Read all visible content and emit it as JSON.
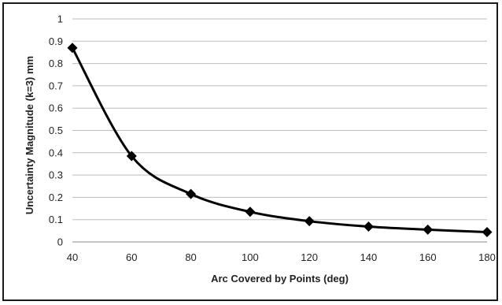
{
  "chart_data": {
    "type": "line",
    "title": "",
    "xlabel": "Arc Covered by Points (deg)",
    "ylabel": "Uncertainty Magnitude (k=3) mm",
    "x": [
      40,
      60,
      80,
      100,
      120,
      140,
      160,
      180
    ],
    "xticks": [
      "40",
      "60",
      "80",
      "100",
      "120",
      "140",
      "160",
      "180"
    ],
    "yticks": [
      "0",
      "0.1",
      "0.2",
      "0.3",
      "0.4",
      "0.5",
      "0.6",
      "0.7",
      "0.8",
      "0.9",
      "1"
    ],
    "xlim": [
      40,
      180
    ],
    "ylim": [
      0,
      1
    ],
    "grid": "horizontal",
    "legend": "none",
    "marker": "diamond",
    "line_style": "smoothed",
    "series": [
      {
        "values": [
          0.87,
          0.385,
          0.215,
          0.135,
          0.093,
          0.069,
          0.055,
          0.044
        ],
        "color": "#000000"
      }
    ]
  }
}
